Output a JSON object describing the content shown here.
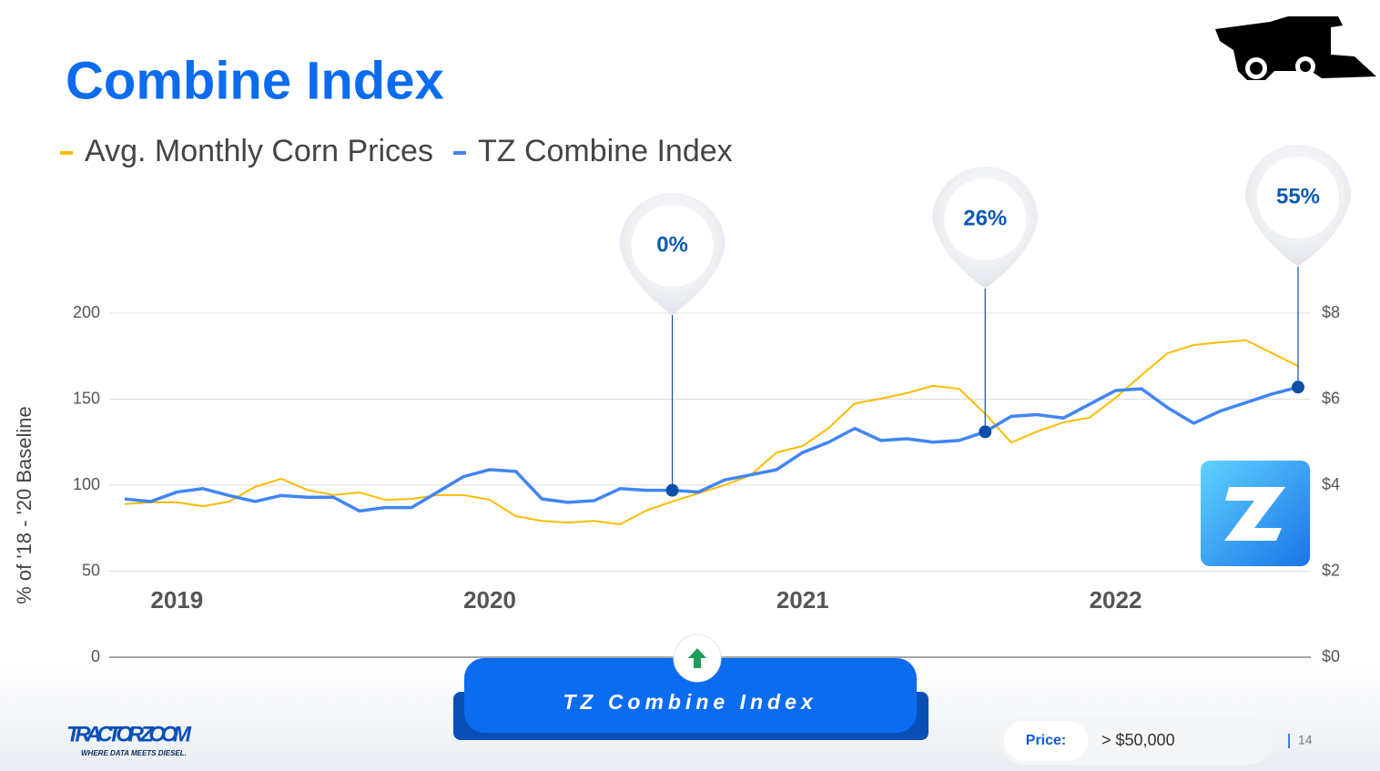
{
  "chart_data": {
    "type": "line",
    "title": "Combine Index",
    "ylabel": "% of '18 - '20 Baseline",
    "categories": [
      null,
      null,
      "2019",
      null,
      null,
      null,
      null,
      null,
      null,
      null,
      null,
      null,
      null,
      null,
      "2020",
      null,
      null,
      null,
      null,
      null,
      null,
      null,
      null,
      null,
      null,
      null,
      "2021",
      null,
      null,
      null,
      null,
      null,
      null,
      null,
      null,
      null,
      null,
      null,
      "2022",
      null,
      null,
      null,
      null,
      null,
      null,
      null
    ],
    "series": [
      {
        "name": "Avg. Monthly Corn Prices",
        "color": "#fbbc04",
        "axis": "y2",
        "values": [
          3.56,
          3.6,
          3.6,
          3.51,
          3.62,
          3.96,
          4.15,
          3.89,
          3.77,
          3.83,
          3.66,
          3.68,
          3.77,
          3.77,
          3.66,
          3.28,
          3.17,
          3.13,
          3.17,
          3.09,
          3.41,
          3.62,
          3.81,
          4.0,
          4.23,
          4.76,
          4.91,
          5.33,
          5.9,
          6.01,
          6.14,
          6.31,
          6.24,
          5.66,
          4.99,
          5.25,
          5.46,
          5.57,
          6.03,
          6.56,
          7.07,
          7.26,
          7.32,
          7.37,
          7.07,
          6.77
        ]
      },
      {
        "name": "TZ Combine Index",
        "color": "#4285f4",
        "values": [
          92,
          90.5,
          96,
          98,
          94,
          90.5,
          94,
          93,
          93,
          85,
          87,
          87,
          96,
          105,
          109,
          108,
          92,
          90,
          91,
          98,
          97,
          97,
          96,
          103,
          106,
          109,
          119,
          125,
          133,
          126,
          127,
          125,
          126,
          131,
          140,
          141,
          139,
          147,
          155,
          156,
          145,
          136,
          143,
          148,
          153,
          157
        ]
      }
    ],
    "annotations": [
      {
        "text": "0%",
        "index": 21
      },
      {
        "text": "26%",
        "index": 33
      },
      {
        "text": "55%",
        "index": 45
      }
    ],
    "ylim": [
      0,
      200
    ],
    "yticks": [
      0,
      50,
      100,
      150,
      200
    ],
    "y2lim": [
      0,
      8
    ],
    "y2ticks": [
      {
        "value": 0,
        "label": "$0"
      },
      {
        "value": 2,
        "label": "$2"
      },
      {
        "value": 4,
        "label": "$4"
      },
      {
        "value": 6,
        "label": "$6"
      },
      {
        "value": 8,
        "label": "$8"
      }
    ],
    "grid": true
  },
  "slide": {
    "button": "TZ Combine Index",
    "logo": "TRACTOR ZOOM",
    "tagline": "WHERE DATA MEETS DIESEL.",
    "filter_label": "Price:",
    "filter_value": "> $50,000",
    "page_number": "14"
  }
}
